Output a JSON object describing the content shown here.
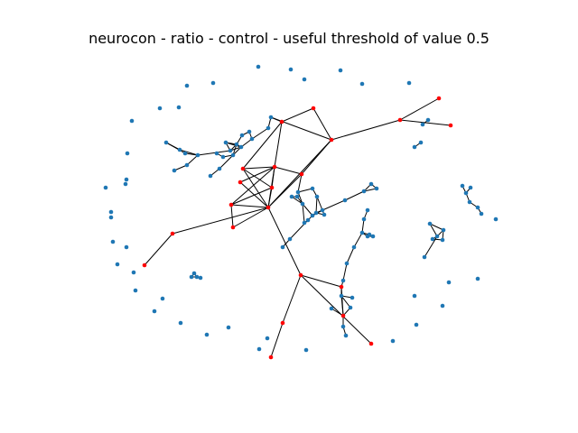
{
  "figure": {
    "title": "neurocon - ratio - control - useful threshold of value 0.5"
  },
  "colors": {
    "node": "#1f77b4",
    "highlight_node": "#ff0000",
    "edge": "#000000"
  }
}
